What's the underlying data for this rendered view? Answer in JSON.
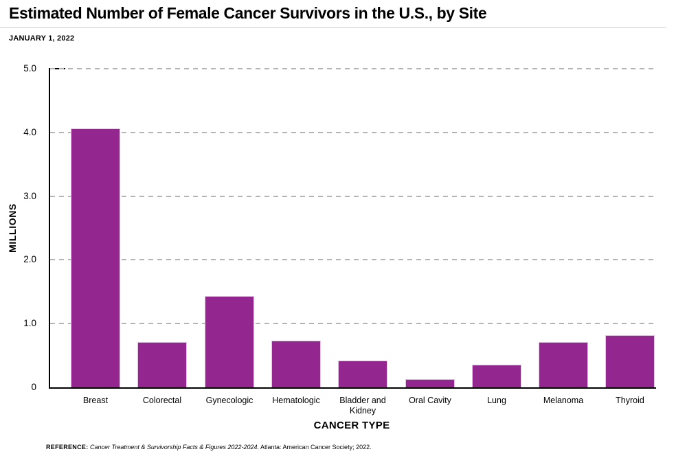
{
  "chart_data": {
    "type": "bar",
    "title": "Estimated Number of Female Cancer Survivors in the U.S., by Site",
    "subtitle": "JANUARY 1, 2022",
    "xlabel": "CANCER TYPE",
    "ylabel": "MILLIONS",
    "categories": [
      "Breast",
      "Colorectal",
      "Gynecologic",
      "Hematologic",
      "Bladder and Kidney",
      "Oral Cavity",
      "Lung",
      "Melanoma",
      "Thyroid"
    ],
    "values": [
      4.06,
      0.71,
      1.43,
      0.73,
      0.42,
      0.13,
      0.36,
      0.71,
      0.82
    ],
    "unit": "millions",
    "ylim": [
      0,
      5.0
    ],
    "yticks": [
      {
        "value": 0,
        "label": "0"
      },
      {
        "value": 1,
        "label": "1.0"
      },
      {
        "value": 2,
        "label": "2.0"
      },
      {
        "value": 3,
        "label": "3.0"
      },
      {
        "value": 4,
        "label": "4.0"
      },
      {
        "value": 5,
        "label": "5.0"
      }
    ],
    "grid": "horizontal-dashed",
    "legend_position": "none",
    "colors": {
      "bar_fill": "#93278f",
      "bar_edge": "#e3c6e4",
      "gridline": "#b3b3b3",
      "axis": "#000000",
      "text": "#000000",
      "title_rule": "#cccccc"
    }
  },
  "footer": {
    "reference_label": "REFERENCE:",
    "reference_source_italic": "Cancer Treatment & Survivorship Facts & Figures 2022-2024.",
    "reference_rest": "Atlanta: American Cancer Society; 2022."
  }
}
